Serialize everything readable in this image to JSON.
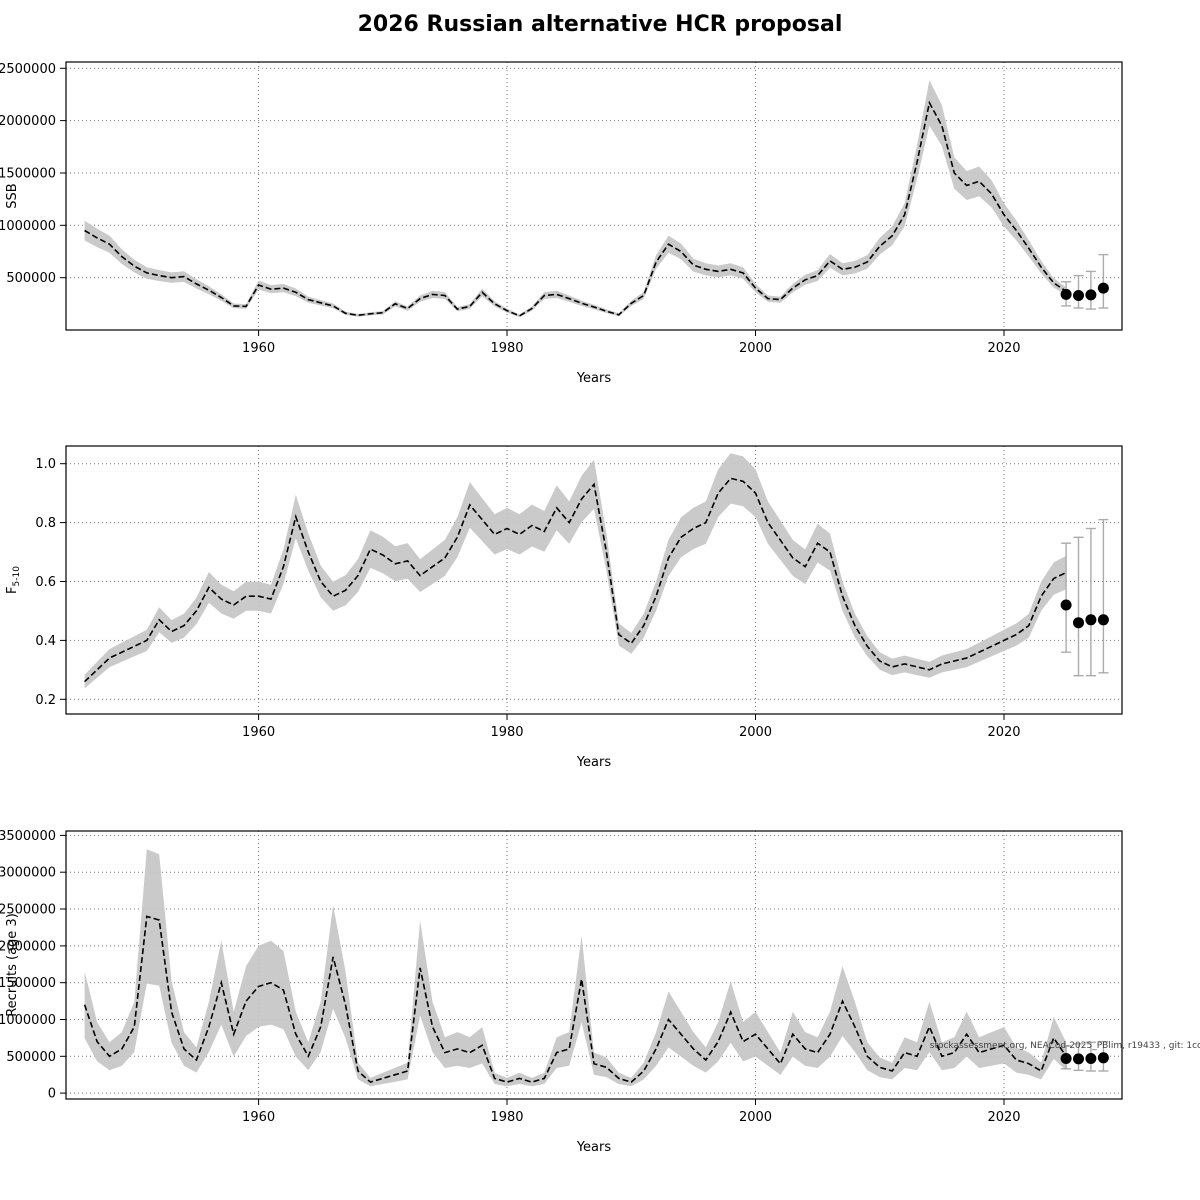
{
  "title": "2026 Russian alternative HCR proposal",
  "watermark": "stockassessment.org, NEACod-2025_PBlim, r19433 , git: 1cc",
  "chart_data": [
    {
      "type": "line",
      "name": "ssb",
      "ylabel": "SSB",
      "xlabel": "Years",
      "xlim": [
        1944.5,
        2029.5
      ],
      "ylim": [
        0,
        2560000
      ],
      "xticks": [
        "1960",
        "1980",
        "2000",
        "2020"
      ],
      "yticks": [
        "500000",
        "1000000",
        "1500000",
        "2000000",
        "2500000"
      ],
      "band_rel": 0.1,
      "x": [
        1946,
        1947,
        1948,
        1949,
        1950,
        1951,
        1952,
        1953,
        1954,
        1955,
        1956,
        1957,
        1958,
        1959,
        1960,
        1961,
        1962,
        1963,
        1964,
        1965,
        1966,
        1967,
        1968,
        1969,
        1970,
        1971,
        1972,
        1973,
        1974,
        1975,
        1976,
        1977,
        1978,
        1979,
        1980,
        1981,
        1982,
        1983,
        1984,
        1985,
        1986,
        1987,
        1988,
        1989,
        1990,
        1991,
        1992,
        1993,
        1994,
        1995,
        1996,
        1997,
        1998,
        1999,
        2000,
        2001,
        2002,
        2003,
        2004,
        2005,
        2006,
        2007,
        2008,
        2009,
        2010,
        2011,
        2012,
        2013,
        2014,
        2015,
        2016,
        2017,
        2018,
        2019,
        2020,
        2021,
        2022,
        2023,
        2024,
        2025
      ],
      "values": [
        950000,
        880000,
        820000,
        700000,
        610000,
        545000,
        520000,
        500000,
        510000,
        440000,
        380000,
        310000,
        230000,
        225000,
        430000,
        390000,
        400000,
        360000,
        290000,
        260000,
        230000,
        160000,
        140000,
        155000,
        165000,
        250000,
        205000,
        300000,
        340000,
        330000,
        200000,
        225000,
        360000,
        250000,
        185000,
        135000,
        205000,
        330000,
        340000,
        300000,
        255000,
        220000,
        180000,
        145000,
        255000,
        330000,
        650000,
        820000,
        750000,
        620000,
        580000,
        560000,
        580000,
        545000,
        400000,
        300000,
        290000,
        400000,
        480000,
        520000,
        660000,
        580000,
        600000,
        650000,
        800000,
        900000,
        1100000,
        1600000,
        2170000,
        1950000,
        1500000,
        1380000,
        1420000,
        1300000,
        1100000,
        950000,
        780000,
        600000,
        450000,
        370000
      ],
      "forecast": {
        "x": [
          2025,
          2026,
          2027,
          2028
        ],
        "y": [
          340000,
          330000,
          335000,
          400000
        ],
        "lo": [
          230000,
          210000,
          200000,
          210000
        ],
        "hi": [
          460000,
          520000,
          560000,
          720000
        ]
      }
    },
    {
      "type": "line",
      "name": "f5-10",
      "ylabel": "F",
      "ylabel_sub": "5-10",
      "xlabel": "Years",
      "xlim": [
        1944.5,
        2029.5
      ],
      "ylim": [
        0.15,
        1.06
      ],
      "xticks": [
        "1960",
        "1980",
        "2000",
        "2020"
      ],
      "yticks": [
        "0.2",
        "0.4",
        "0.6",
        "0.8",
        "1.0"
      ],
      "band_rel": 0.09,
      "x": [
        1946,
        1947,
        1948,
        1949,
        1950,
        1951,
        1952,
        1953,
        1954,
        1955,
        1956,
        1957,
        1958,
        1959,
        1960,
        1961,
        1962,
        1963,
        1964,
        1965,
        1966,
        1967,
        1968,
        1969,
        1970,
        1971,
        1972,
        1973,
        1974,
        1975,
        1976,
        1977,
        1978,
        1979,
        1980,
        1981,
        1982,
        1983,
        1984,
        1985,
        1986,
        1987,
        1988,
        1989,
        1990,
        1991,
        1992,
        1993,
        1994,
        1995,
        1996,
        1997,
        1998,
        1999,
        2000,
        2001,
        2002,
        2003,
        2004,
        2005,
        2006,
        2007,
        2008,
        2009,
        2010,
        2011,
        2012,
        2013,
        2014,
        2015,
        2016,
        2017,
        2018,
        2019,
        2020,
        2021,
        2022,
        2023,
        2024,
        2025
      ],
      "values": [
        0.26,
        0.3,
        0.34,
        0.36,
        0.38,
        0.4,
        0.47,
        0.43,
        0.45,
        0.5,
        0.58,
        0.54,
        0.52,
        0.55,
        0.55,
        0.54,
        0.65,
        0.82,
        0.7,
        0.6,
        0.55,
        0.57,
        0.62,
        0.71,
        0.69,
        0.66,
        0.67,
        0.62,
        0.65,
        0.68,
        0.75,
        0.86,
        0.81,
        0.76,
        0.78,
        0.76,
        0.79,
        0.77,
        0.85,
        0.8,
        0.88,
        0.93,
        0.7,
        0.42,
        0.39,
        0.45,
        0.55,
        0.68,
        0.75,
        0.78,
        0.8,
        0.9,
        0.95,
        0.94,
        0.9,
        0.8,
        0.74,
        0.68,
        0.65,
        0.73,
        0.7,
        0.55,
        0.45,
        0.38,
        0.33,
        0.31,
        0.32,
        0.31,
        0.3,
        0.32,
        0.33,
        0.34,
        0.36,
        0.38,
        0.4,
        0.42,
        0.45,
        0.55,
        0.61,
        0.63
      ],
      "forecast": {
        "x": [
          2025,
          2026,
          2027,
          2028
        ],
        "y": [
          0.52,
          0.46,
          0.47,
          0.47
        ],
        "lo": [
          0.36,
          0.28,
          0.28,
          0.29
        ],
        "hi": [
          0.73,
          0.75,
          0.78,
          0.81
        ]
      }
    },
    {
      "type": "line",
      "name": "recruits-age-3",
      "ylabel": "Recruits (age 3)",
      "xlabel": "Years",
      "xlim": [
        1944.5,
        2029.5
      ],
      "ylim": [
        -80000,
        3560000
      ],
      "xticks": [
        "1960",
        "1980",
        "2000",
        "2020"
      ],
      "yticks": [
        "0",
        "500000",
        "1000000",
        "1500000",
        "2000000",
        "2500000",
        "3000000",
        "3500000"
      ],
      "band_rel": 0.38,
      "x": [
        1946,
        1947,
        1948,
        1949,
        1950,
        1951,
        1952,
        1953,
        1954,
        1955,
        1956,
        1957,
        1958,
        1959,
        1960,
        1961,
        1962,
        1963,
        1964,
        1965,
        1966,
        1967,
        1968,
        1969,
        1970,
        1971,
        1972,
        1973,
        1974,
        1975,
        1976,
        1977,
        1978,
        1979,
        1980,
        1981,
        1982,
        1983,
        1984,
        1985,
        1986,
        1987,
        1988,
        1989,
        1990,
        1991,
        1992,
        1993,
        1994,
        1995,
        1996,
        1997,
        1998,
        1999,
        2000,
        2001,
        2002,
        2003,
        2004,
        2005,
        2006,
        2007,
        2008,
        2009,
        2010,
        2011,
        2012,
        2013,
        2014,
        2015,
        2016,
        2017,
        2018,
        2019,
        2020,
        2021,
        2022,
        2023,
        2024,
        2025
      ],
      "values": [
        1200000,
        700000,
        500000,
        600000,
        900000,
        2400000,
        2350000,
        1100000,
        600000,
        450000,
        900000,
        1500000,
        800000,
        1250000,
        1450000,
        1500000,
        1400000,
        800000,
        500000,
        900000,
        1850000,
        1200000,
        300000,
        150000,
        200000,
        250000,
        300000,
        1700000,
        900000,
        550000,
        600000,
        550000,
        650000,
        200000,
        150000,
        200000,
        150000,
        200000,
        550000,
        600000,
        1550000,
        400000,
        350000,
        200000,
        150000,
        300000,
        600000,
        1000000,
        800000,
        600000,
        450000,
        700000,
        1100000,
        700000,
        800000,
        600000,
        400000,
        800000,
        600000,
        550000,
        800000,
        1250000,
        900000,
        500000,
        350000,
        300000,
        550000,
        500000,
        900000,
        500000,
        550000,
        800000,
        550000,
        600000,
        650000,
        450000,
        400000,
        300000,
        750000,
        500000
      ],
      "forecast": {
        "x": [
          2025,
          2026,
          2027,
          2028
        ],
        "y": [
          470000,
          465000,
          470000,
          480000
        ],
        "lo": [
          330000,
          310000,
          300000,
          300000
        ],
        "hi": [
          640000,
          670000,
          690000,
          700000
        ]
      }
    }
  ]
}
